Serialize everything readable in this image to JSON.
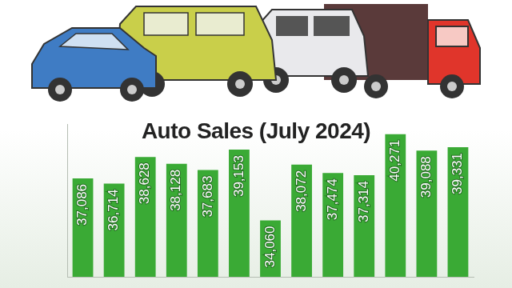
{
  "chart_data": {
    "type": "bar",
    "title": "Auto Sales (July 2024)",
    "categories": [
      null,
      null,
      null,
      null,
      null,
      null,
      null,
      null,
      null,
      null,
      null,
      null,
      null
    ],
    "values": [
      37086,
      36714,
      38628,
      38128,
      37683,
      39153,
      34060,
      38072,
      37474,
      37314,
      40271,
      39088,
      39331
    ],
    "value_labels": [
      "37,086",
      "36,714",
      "38,628",
      "38,128",
      "37,683",
      "39,153",
      "34,060",
      "38,072",
      "37,474",
      "37,314",
      "40,271",
      "39,088",
      "39,331"
    ],
    "color": "#3aaa35",
    "ylim": [
      30000,
      41000
    ],
    "grid": false,
    "data_labels": true,
    "tick_labels": false
  }
}
